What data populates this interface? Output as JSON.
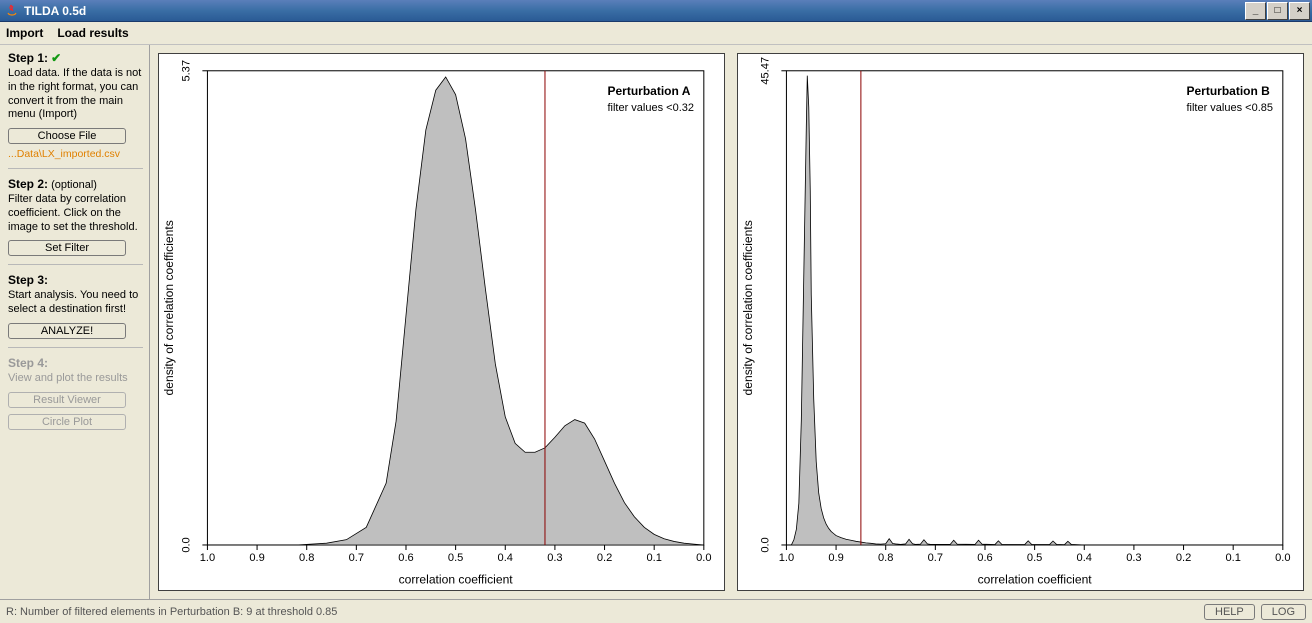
{
  "window": {
    "title": "TILDA 0.5d",
    "btn_min": "_",
    "btn_max": "□",
    "btn_close": "×"
  },
  "menu": {
    "import": "Import",
    "load_results": "Load results"
  },
  "sidebar": {
    "step1": {
      "title": "Step 1:",
      "desc": "Load data. If the data is not in the right format, you can convert it from the main menu (Import)",
      "btn": "Choose File",
      "file": "...Data\\LX_imported.csv"
    },
    "step2": {
      "title": "Step 2:",
      "opt": "(optional)",
      "desc": "Filter data by correlation coefficient. Click on the image to set the threshold.",
      "btn": "Set Filter"
    },
    "step3": {
      "title": "Step 3:",
      "desc": "Start analysis. You need to select a destination first!",
      "btn": "ANALYZE!"
    },
    "step4": {
      "title": "Step 4:",
      "desc": "View and plot the results",
      "btn1": "Result Viewer",
      "btn2": "Circle Plot"
    }
  },
  "charts": {
    "a": {
      "type": "density",
      "title": "Perturbation A",
      "filter_label": "filter values <0.32",
      "xlabel": "correlation coefficient",
      "ylabel": "density of correlation coefficients",
      "xlim": [
        1.0,
        0.0
      ],
      "xticks": [
        1.0,
        0.9,
        0.8,
        0.7,
        0.6,
        0.5,
        0.4,
        0.3,
        0.2,
        0.1,
        0.0
      ],
      "ylim": [
        0.0,
        5.37
      ],
      "yticks": [
        0.0,
        5.37
      ],
      "threshold_x": 0.32,
      "threshold_color": "#8b0000",
      "fill_color": "#bfbfbf",
      "stroke_color": "#000000",
      "background_color": "#ffffff",
      "density": [
        [
          1.0,
          0.0
        ],
        [
          0.9,
          0.0
        ],
        [
          0.82,
          0.0
        ],
        [
          0.76,
          0.02
        ],
        [
          0.72,
          0.06
        ],
        [
          0.68,
          0.2
        ],
        [
          0.64,
          0.7
        ],
        [
          0.62,
          1.4
        ],
        [
          0.6,
          2.6
        ],
        [
          0.58,
          3.8
        ],
        [
          0.56,
          4.7
        ],
        [
          0.54,
          5.15
        ],
        [
          0.52,
          5.3
        ],
        [
          0.5,
          5.1
        ],
        [
          0.48,
          4.6
        ],
        [
          0.46,
          3.8
        ],
        [
          0.44,
          2.9
        ],
        [
          0.42,
          2.05
        ],
        [
          0.4,
          1.45
        ],
        [
          0.38,
          1.15
        ],
        [
          0.36,
          1.05
        ],
        [
          0.34,
          1.05
        ],
        [
          0.32,
          1.1
        ],
        [
          0.3,
          1.22
        ],
        [
          0.28,
          1.35
        ],
        [
          0.26,
          1.42
        ],
        [
          0.24,
          1.38
        ],
        [
          0.22,
          1.2
        ],
        [
          0.2,
          0.95
        ],
        [
          0.18,
          0.7
        ],
        [
          0.16,
          0.48
        ],
        [
          0.14,
          0.32
        ],
        [
          0.12,
          0.2
        ],
        [
          0.1,
          0.12
        ],
        [
          0.08,
          0.07
        ],
        [
          0.06,
          0.04
        ],
        [
          0.04,
          0.02
        ],
        [
          0.02,
          0.01
        ],
        [
          0.0,
          0.0
        ]
      ]
    },
    "b": {
      "type": "density",
      "title": "Perturbation B",
      "filter_label": "filter values <0.85",
      "xlabel": "correlation coefficient",
      "ylabel": "density of correlation coefficients",
      "xlim": [
        1.0,
        0.0
      ],
      "xticks": [
        1.0,
        0.9,
        0.8,
        0.7,
        0.6,
        0.5,
        0.4,
        0.3,
        0.2,
        0.1,
        0.0
      ],
      "ylim": [
        0.0,
        45.47
      ],
      "yticks": [
        0.0,
        45.47
      ],
      "threshold_x": 0.85,
      "threshold_color": "#8b0000",
      "fill_color": "#bfbfbf",
      "stroke_color": "#000000",
      "background_color": "#ffffff",
      "density": [
        [
          1.0,
          0.0
        ],
        [
          0.99,
          0.0
        ],
        [
          0.985,
          0.5
        ],
        [
          0.98,
          1.5
        ],
        [
          0.975,
          4.0
        ],
        [
          0.97,
          12.0
        ],
        [
          0.965,
          26.0
        ],
        [
          0.96,
          40.0
        ],
        [
          0.958,
          45.0
        ],
        [
          0.955,
          42.0
        ],
        [
          0.952,
          34.0
        ],
        [
          0.95,
          24.0
        ],
        [
          0.945,
          14.0
        ],
        [
          0.94,
          8.0
        ],
        [
          0.935,
          5.0
        ],
        [
          0.93,
          3.5
        ],
        [
          0.925,
          2.6
        ],
        [
          0.92,
          2.0
        ],
        [
          0.915,
          1.6
        ],
        [
          0.91,
          1.3
        ],
        [
          0.905,
          1.1
        ],
        [
          0.9,
          0.9
        ],
        [
          0.89,
          0.7
        ],
        [
          0.88,
          0.55
        ],
        [
          0.87,
          0.45
        ],
        [
          0.86,
          0.35
        ],
        [
          0.85,
          0.28
        ],
        [
          0.84,
          0.2
        ],
        [
          0.83,
          0.16
        ],
        [
          0.82,
          0.1
        ],
        [
          0.81,
          0.08
        ],
        [
          0.8,
          0.12
        ],
        [
          0.793,
          0.6
        ],
        [
          0.786,
          0.14
        ],
        [
          0.78,
          0.1
        ],
        [
          0.77,
          0.06
        ],
        [
          0.76,
          0.1
        ],
        [
          0.753,
          0.55
        ],
        [
          0.746,
          0.12
        ],
        [
          0.74,
          0.06
        ],
        [
          0.73,
          0.08
        ],
        [
          0.723,
          0.5
        ],
        [
          0.716,
          0.1
        ],
        [
          0.71,
          0.05
        ],
        [
          0.67,
          0.06
        ],
        [
          0.663,
          0.45
        ],
        [
          0.656,
          0.08
        ],
        [
          0.62,
          0.06
        ],
        [
          0.613,
          0.45
        ],
        [
          0.606,
          0.08
        ],
        [
          0.58,
          0.04
        ],
        [
          0.573,
          0.4
        ],
        [
          0.566,
          0.06
        ],
        [
          0.52,
          0.04
        ],
        [
          0.513,
          0.4
        ],
        [
          0.506,
          0.06
        ],
        [
          0.47,
          0.04
        ],
        [
          0.463,
          0.38
        ],
        [
          0.456,
          0.06
        ],
        [
          0.44,
          0.03
        ],
        [
          0.433,
          0.35
        ],
        [
          0.426,
          0.05
        ],
        [
          0.41,
          0.02
        ],
        [
          0.4,
          0.0
        ],
        [
          0.0,
          0.0
        ]
      ]
    }
  },
  "statusbar": {
    "text": "R: Number of filtered elements in Perturbation B: 9 at threshold 0.85",
    "help": "HELP",
    "log": "LOG"
  }
}
